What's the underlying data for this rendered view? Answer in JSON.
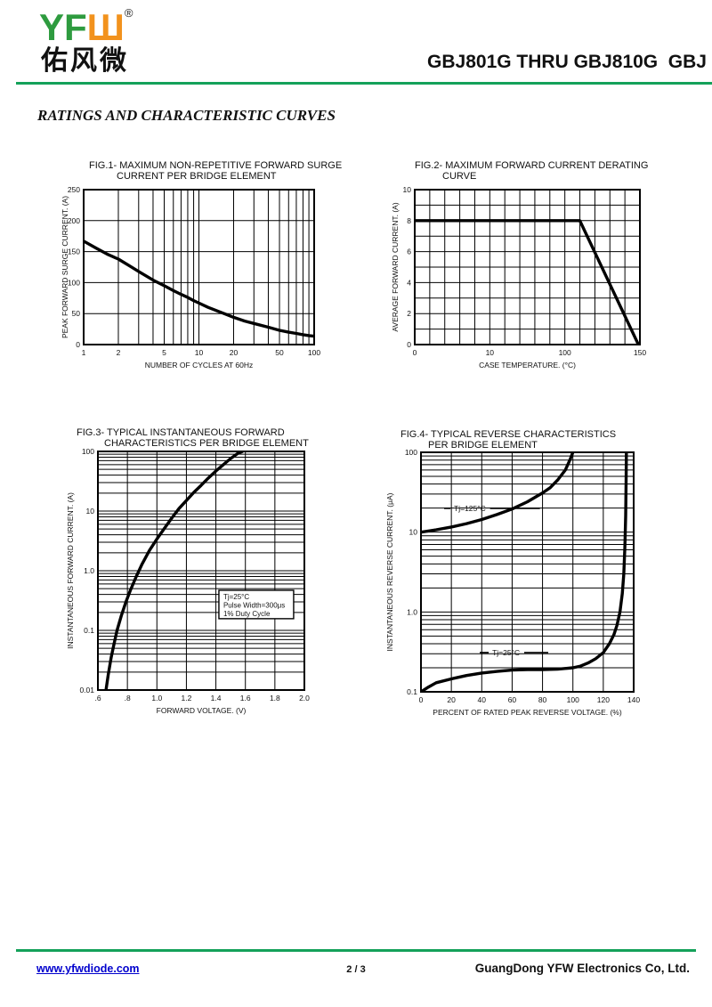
{
  "header": {
    "logo_text_green": "YF",
    "logo_text_orange": "Ш",
    "logo_registered": "®",
    "logo_chinese": "佑风微",
    "part_range": "GBJ801G THRU GBJ810G  GBJ"
  },
  "section_title": "RATINGS AND CHARACTERISTIC CURVES",
  "footer": {
    "website": "www.yfwdiode.com",
    "page": "2 / 3",
    "company": "GuangDong YFW Electronics Co, Ltd."
  },
  "colors": {
    "accent_green": "#14a15a",
    "logo_green": "#2e9b3f",
    "logo_orange": "#f2921d",
    "link_blue": "#0000cd",
    "curve_black": "#000000"
  },
  "chart_data": [
    {
      "id": "f1",
      "type": "line",
      "title_line1": "FIG.1- MAXIMUM NON-REPETITIVE FORWARD SURGE",
      "title_line2": "CURRENT PER BRIDGE ELEMENT",
      "xlabel": "NUMBER OF CYCLES AT 60Hz",
      "ylabel": "PEAK FORWARD SURGE CURRENT. (A)",
      "x_scale": "log",
      "x_range": [
        1,
        100
      ],
      "x_tick_labels": [
        1,
        2,
        5,
        10,
        20,
        50,
        100
      ],
      "y_scale": "linear",
      "y_range": [
        0,
        250
      ],
      "y_grid_step": 50,
      "y_ticks": [
        0,
        50,
        100,
        150,
        200,
        250
      ],
      "grid": true,
      "series": [
        {
          "name": "surge-current",
          "points": [
            [
              1,
              167
            ],
            [
              1.3,
              155
            ],
            [
              1.6,
              146
            ],
            [
              2,
              138
            ],
            [
              2.5,
              127
            ],
            [
              3,
              118
            ],
            [
              4,
              104
            ],
            [
              5,
              95
            ],
            [
              6,
              87
            ],
            [
              7,
              81
            ],
            [
              8,
              76
            ],
            [
              9,
              71
            ],
            [
              10,
              67
            ],
            [
              12,
              60
            ],
            [
              15,
              53
            ],
            [
              20,
              44
            ],
            [
              25,
              38
            ],
            [
              30,
              34
            ],
            [
              40,
              28
            ],
            [
              50,
              23
            ],
            [
              60,
              20
            ],
            [
              70,
              18
            ],
            [
              80,
              16
            ],
            [
              90,
              14.5
            ],
            [
              100,
              13.5
            ]
          ]
        }
      ]
    },
    {
      "id": "f2",
      "type": "line",
      "title_line1": "FIG.2- MAXIMUM FORWARD CURRENT DERATING",
      "title_line2": "CURVE",
      "xlabel": "CASE TEMPERATURE. (°C)",
      "ylabel": "AVERAGE FORWARD CURRENT. (A)",
      "x_scale": "anchored",
      "x_anchors": [
        [
          0,
          0
        ],
        [
          10,
          0.3333
        ],
        [
          100,
          0.6667
        ],
        [
          150,
          1
        ]
      ],
      "x_tick_labels": [
        {
          "label": "0",
          "f": 0
        },
        {
          "label": "10",
          "f": 0.3333
        },
        {
          "label": "100",
          "f": 0.6667
        },
        {
          "label": "150",
          "f": 1
        }
      ],
      "x_grid_columns": 15,
      "y_scale": "linear",
      "y_range": [
        0,
        10
      ],
      "y_grid_step": 1,
      "y_ticks": [
        0,
        2,
        4,
        6,
        8,
        10
      ],
      "grid": true,
      "series": [
        {
          "name": "derating",
          "points": [
            [
              0,
              8
            ],
            [
              110,
              8
            ],
            [
              149,
              0
            ]
          ]
        }
      ]
    },
    {
      "id": "f3",
      "type": "line",
      "title_line1": "FIG.3- TYPICAL INSTANTANEOUS FORWARD",
      "title_line2": "CHARACTERISTICS PER BRIDGE ELEMENT",
      "xlabel": "FORWARD VOLTAGE. (V)",
      "ylabel": "INSTANTANEOUS FORWARD CURRENT. (A)",
      "x_scale": "linear",
      "x_range": [
        0.6,
        2.0
      ],
      "x_grid_step": 0.2,
      "x_tick_labels": [
        ".6",
        ".8",
        "1.0",
        "1.2",
        "1.4",
        "1.6",
        "1.8",
        "2.0"
      ],
      "y_scale": "log",
      "y_range": [
        0.01,
        100
      ],
      "y_tick_labels": [
        "0.01",
        "0.1",
        "1.0",
        "10",
        "100"
      ],
      "grid": true,
      "annotation": {
        "lines": [
          "Tj=25°C",
          "Pulse Width=300μs",
          "1% Duty Cycle"
        ],
        "box": [
          0.586,
          0.582,
          0.948,
          0.701
        ]
      },
      "series": [
        {
          "name": "forward-characteristic",
          "points": [
            [
              0.655,
              0.01
            ],
            [
              0.67,
              0.018
            ],
            [
              0.69,
              0.035
            ],
            [
              0.71,
              0.06
            ],
            [
              0.73,
              0.1
            ],
            [
              0.76,
              0.18
            ],
            [
              0.79,
              0.3
            ],
            [
              0.82,
              0.47
            ],
            [
              0.86,
              0.8
            ],
            [
              0.9,
              1.3
            ],
            [
              0.95,
              2.2
            ],
            [
              1.0,
              3.4
            ],
            [
              1.05,
              5.1
            ],
            [
              1.1,
              7.6
            ],
            [
              1.15,
              11
            ],
            [
              1.2,
              15
            ],
            [
              1.25,
              20.5
            ],
            [
              1.3,
              27
            ],
            [
              1.35,
              36
            ],
            [
              1.4,
              47
            ],
            [
              1.45,
              60
            ],
            [
              1.5,
              76
            ],
            [
              1.55,
              93
            ],
            [
              1.58,
              100
            ]
          ]
        }
      ]
    },
    {
      "id": "f4",
      "type": "line",
      "title_line1": "FIG.4- TYPICAL REVERSE CHARACTERISTICS",
      "title_line2": "PER BRIDGE ELEMENT",
      "xlabel": "PERCENT OF RATED PEAK REVERSE VOLTAGE. (%)",
      "ylabel": "INSTANTANEOUS REVERSE CURRENT. (μA)",
      "x_scale": "linear",
      "x_range": [
        0,
        140
      ],
      "x_grid_step": 20,
      "x_tick_labels": [
        "0",
        "20",
        "40",
        "60",
        "80",
        "100",
        "120",
        "140"
      ],
      "y_scale": "log",
      "y_range": [
        0.1,
        100
      ],
      "y_tick_labels": [
        "0.1",
        "1.0",
        "10",
        "100"
      ],
      "grid": true,
      "series": [
        {
          "name": "Tj=125C",
          "label": "Tj=125°C",
          "label_pos": [
            0.155,
            0.234
          ],
          "label_dash": [
            7,
            56
          ],
          "points": [
            [
              0,
              10
            ],
            [
              10,
              10.7
            ],
            [
              20,
              11.6
            ],
            [
              30,
              12.8
            ],
            [
              40,
              14.4
            ],
            [
              50,
              16.6
            ],
            [
              60,
              19.5
            ],
            [
              70,
              24
            ],
            [
              80,
              31
            ],
            [
              85,
              36
            ],
            [
              90,
              45
            ],
            [
              95,
              60
            ],
            [
              98,
              80
            ],
            [
              100,
              100
            ]
          ]
        },
        {
          "name": "Tj=25C",
          "label": "Tj=25°C",
          "label_pos": [
            0.335,
            0.836
          ],
          "label_dash": [
            10,
            27
          ],
          "points": [
            [
              0,
              0.1
            ],
            [
              5,
              0.115
            ],
            [
              10,
              0.13
            ],
            [
              20,
              0.145
            ],
            [
              30,
              0.16
            ],
            [
              40,
              0.172
            ],
            [
              50,
              0.18
            ],
            [
              60,
              0.187
            ],
            [
              70,
              0.19
            ],
            [
              80,
              0.19
            ],
            [
              90,
              0.192
            ],
            [
              100,
              0.2
            ],
            [
              105,
              0.21
            ],
            [
              110,
              0.23
            ],
            [
              115,
              0.26
            ],
            [
              120,
              0.31
            ],
            [
              124,
              0.4
            ],
            [
              127,
              0.52
            ],
            [
              129,
              0.68
            ],
            [
              131,
              1.0
            ],
            [
              132.5,
              1.7
            ],
            [
              133.5,
              3
            ],
            [
              134.2,
              6.5
            ],
            [
              134.7,
              16
            ],
            [
              135,
              45
            ],
            [
              135.2,
              100
            ]
          ]
        }
      ]
    }
  ]
}
